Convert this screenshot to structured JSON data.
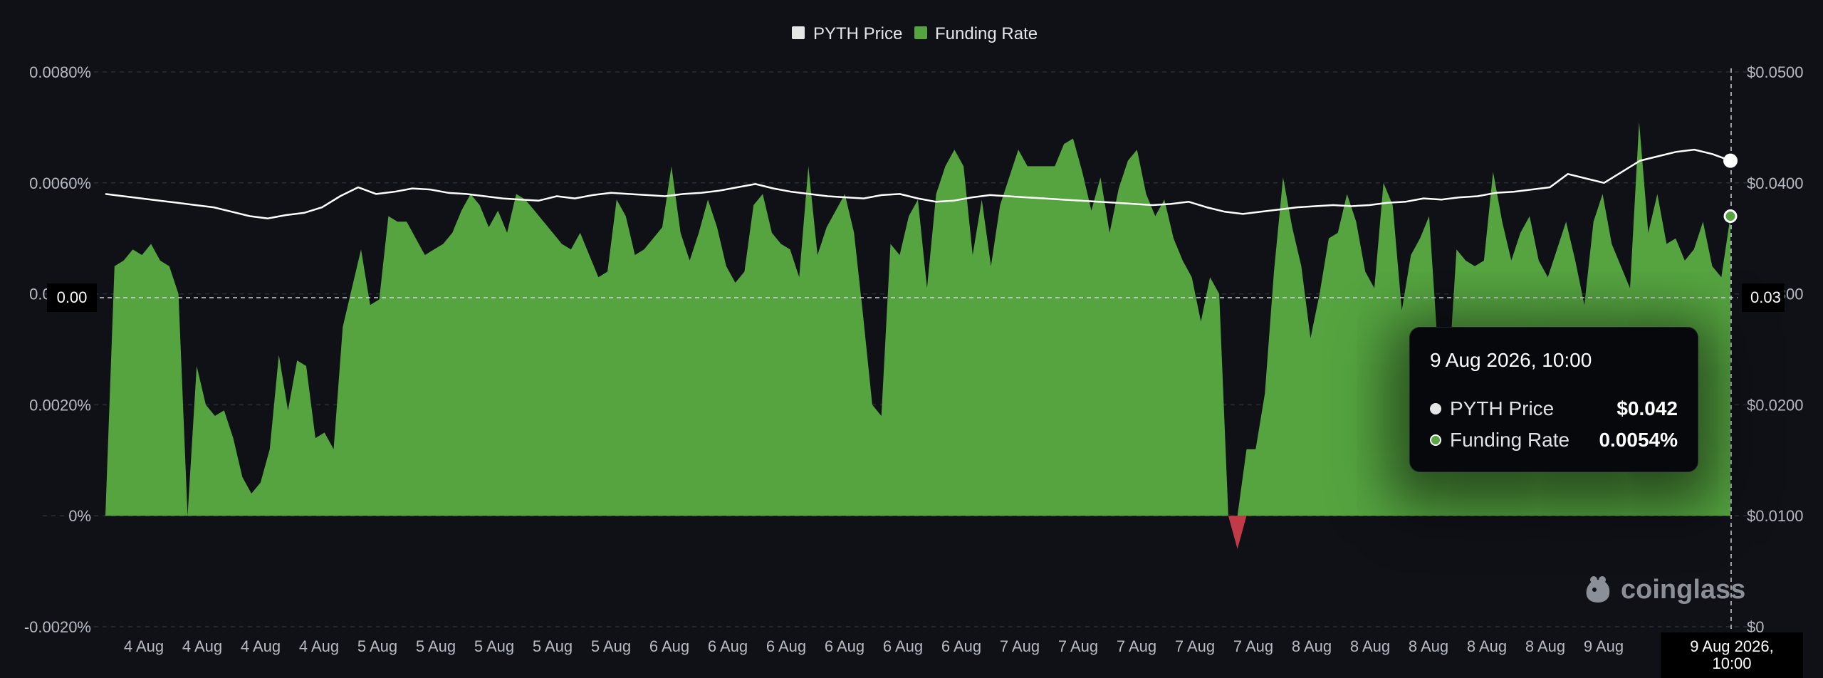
{
  "legend": {
    "price_label": "PYTH Price",
    "funding_label": "Funding Rate"
  },
  "colors": {
    "background": "#0f1117",
    "funding_positive": "#55a440",
    "funding_negative": "#c23a47",
    "price_line": "#ffffff",
    "grid": "#2a2e37"
  },
  "tooltip": {
    "title": "9 Aug 2026, 10:00",
    "price_label": "PYTH Price",
    "price_value": "$0.042",
    "funding_label": "Funding Rate",
    "funding_value": "0.0054%"
  },
  "crosshair": {
    "left_value": "0.00",
    "right_value": "0.03",
    "date_label": "9 Aug 2026, 10:00"
  },
  "watermark": {
    "text": "coinglass",
    "icon": "coinglass-logo-icon"
  },
  "chart_data": {
    "type": "area",
    "title": "",
    "xlabel": "",
    "grid": "horizontal dashed",
    "legend_position": "top-center",
    "x_ticks": [
      "4 Aug",
      "4 Aug",
      "4 Aug",
      "4 Aug",
      "5 Aug",
      "5 Aug",
      "5 Aug",
      "5 Aug",
      "5 Aug",
      "6 Aug",
      "6 Aug",
      "6 Aug",
      "6 Aug",
      "6 Aug",
      "6 Aug",
      "7 Aug",
      "7 Aug",
      "7 Aug",
      "7 Aug",
      "7 Aug",
      "8 Aug",
      "8 Aug",
      "8 Aug",
      "8 Aug",
      "8 Aug",
      "9 Aug",
      "9 Aug"
    ],
    "y_left": {
      "label": "Funding Rate",
      "range": [
        -0.002,
        0.008
      ],
      "ticks": [
        "-0.0020%",
        "0%",
        "0.0020%",
        "0.0040%",
        "0.0060%",
        "0.0080%"
      ]
    },
    "y_right": {
      "label": "PYTH Price",
      "range": [
        0,
        0.05
      ],
      "ticks": [
        "$0",
        "$0.0100",
        "$0.0200",
        "$0.0300",
        "$0.0400",
        "$0.0500"
      ]
    },
    "series": [
      {
        "name": "Funding Rate",
        "axis": "left",
        "type": "area",
        "values": [
          0.0,
          0.0045,
          0.0046,
          0.0048,
          0.0047,
          0.0049,
          0.0046,
          0.0045,
          0.004,
          0.0,
          0.0027,
          0.002,
          0.0018,
          0.0019,
          0.0014,
          0.0007,
          0.0004,
          0.0006,
          0.0012,
          0.0029,
          0.0019,
          0.0028,
          0.0027,
          0.0014,
          0.0015,
          0.0012,
          0.0034,
          0.0041,
          0.0048,
          0.0038,
          0.0039,
          0.0054,
          0.0053,
          0.0053,
          0.005,
          0.0047,
          0.0048,
          0.0049,
          0.0051,
          0.0055,
          0.0058,
          0.0056,
          0.0052,
          0.0055,
          0.0051,
          0.0058,
          0.0057,
          0.0055,
          0.0053,
          0.0051,
          0.0049,
          0.0048,
          0.0051,
          0.0047,
          0.0043,
          0.0044,
          0.0057,
          0.0054,
          0.0047,
          0.0048,
          0.005,
          0.0052,
          0.0063,
          0.0051,
          0.0046,
          0.0051,
          0.0057,
          0.0052,
          0.0045,
          0.0042,
          0.0044,
          0.0056,
          0.0058,
          0.0051,
          0.0049,
          0.0048,
          0.0043,
          0.0063,
          0.0047,
          0.0052,
          0.0055,
          0.0058,
          0.0051,
          0.0036,
          0.002,
          0.0018,
          0.0049,
          0.0047,
          0.0054,
          0.0057,
          0.0041,
          0.0058,
          0.0063,
          0.0066,
          0.0063,
          0.0047,
          0.0057,
          0.0045,
          0.0056,
          0.0061,
          0.0066,
          0.0063,
          0.0063,
          0.0063,
          0.0063,
          0.0067,
          0.0068,
          0.0062,
          0.0055,
          0.0061,
          0.0051,
          0.0059,
          0.0064,
          0.0066,
          0.0058,
          0.0054,
          0.0057,
          0.005,
          0.0046,
          0.0043,
          0.0035,
          0.0043,
          0.004,
          0.0,
          -0.0006,
          0.0012,
          0.0012,
          0.0022,
          0.0044,
          0.0061,
          0.0052,
          0.0045,
          0.0032,
          0.004,
          0.005,
          0.0051,
          0.0058,
          0.0053,
          0.0044,
          0.0041,
          0.006,
          0.0056,
          0.0037,
          0.0047,
          0.005,
          0.0054,
          0.0029,
          0.0022,
          0.0048,
          0.0046,
          0.0045,
          0.0046,
          0.0062,
          0.0053,
          0.0046,
          0.0051,
          0.0054,
          0.0046,
          0.0043,
          0.0048,
          0.0053,
          0.0046,
          0.0038,
          0.0053,
          0.0058,
          0.0049,
          0.0045,
          0.0041,
          0.0071,
          0.0051,
          0.0058,
          0.0049,
          0.005,
          0.0046,
          0.0048,
          0.0053,
          0.0045,
          0.0043,
          0.0054
        ]
      },
      {
        "name": "PYTH Price",
        "axis": "right",
        "type": "line",
        "values": [
          0.039,
          0.0388,
          0.0386,
          0.0384,
          0.0382,
          0.038,
          0.0378,
          0.0374,
          0.037,
          0.0368,
          0.0371,
          0.0373,
          0.0378,
          0.0388,
          0.0396,
          0.039,
          0.0392,
          0.0395,
          0.0394,
          0.0391,
          0.039,
          0.0388,
          0.0386,
          0.0385,
          0.0384,
          0.0388,
          0.0386,
          0.0389,
          0.0391,
          0.039,
          0.0389,
          0.0388,
          0.039,
          0.0391,
          0.0393,
          0.0396,
          0.0399,
          0.0395,
          0.0392,
          0.039,
          0.0388,
          0.0387,
          0.0386,
          0.0389,
          0.039,
          0.0386,
          0.0383,
          0.0384,
          0.0387,
          0.0389,
          0.0388,
          0.0387,
          0.0386,
          0.0385,
          0.0384,
          0.0383,
          0.0382,
          0.0381,
          0.038,
          0.0381,
          0.0383,
          0.0378,
          0.0374,
          0.0372,
          0.0374,
          0.0376,
          0.0378,
          0.0379,
          0.038,
          0.0379,
          0.038,
          0.0382,
          0.0383,
          0.0386,
          0.0385,
          0.0387,
          0.0388,
          0.0391,
          0.0392,
          0.0394,
          0.0396,
          0.0408,
          0.0404,
          0.04,
          0.041,
          0.042,
          0.0424,
          0.0428,
          0.043,
          0.0426,
          0.042
        ]
      }
    ]
  }
}
